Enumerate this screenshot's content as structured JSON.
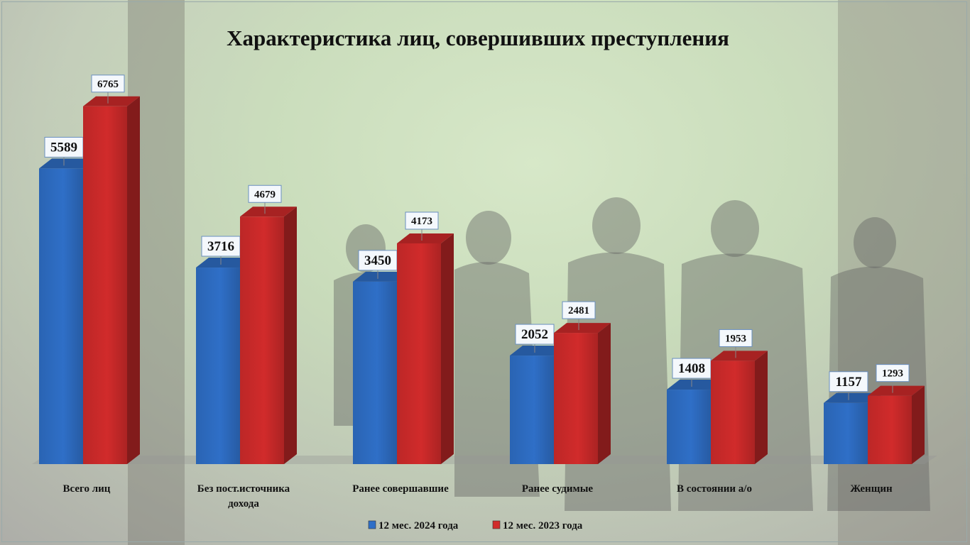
{
  "chart_data": {
    "type": "bar",
    "title": "Характеристика лиц, совершивших преступления",
    "categories": [
      [
        "Всего лиц"
      ],
      [
        "Без пост.источника",
        "дохода"
      ],
      [
        "Ранее совершавшие"
      ],
      [
        "Ранее судимые"
      ],
      [
        "В состоянии а/о"
      ],
      [
        "Женщин"
      ]
    ],
    "series": [
      {
        "name": "12 мес. 2024 года",
        "color": "#2f6fc7",
        "values": [
          5589,
          3716,
          3450,
          2052,
          1408,
          1157
        ]
      },
      {
        "name": "12 мес. 2023 года",
        "color": "#d12b2b",
        "values": [
          6765,
          4679,
          4173,
          2481,
          1953,
          1293
        ]
      }
    ],
    "ylim": [
      0,
      7500
    ],
    "grid": false,
    "legend": "bottom"
  }
}
